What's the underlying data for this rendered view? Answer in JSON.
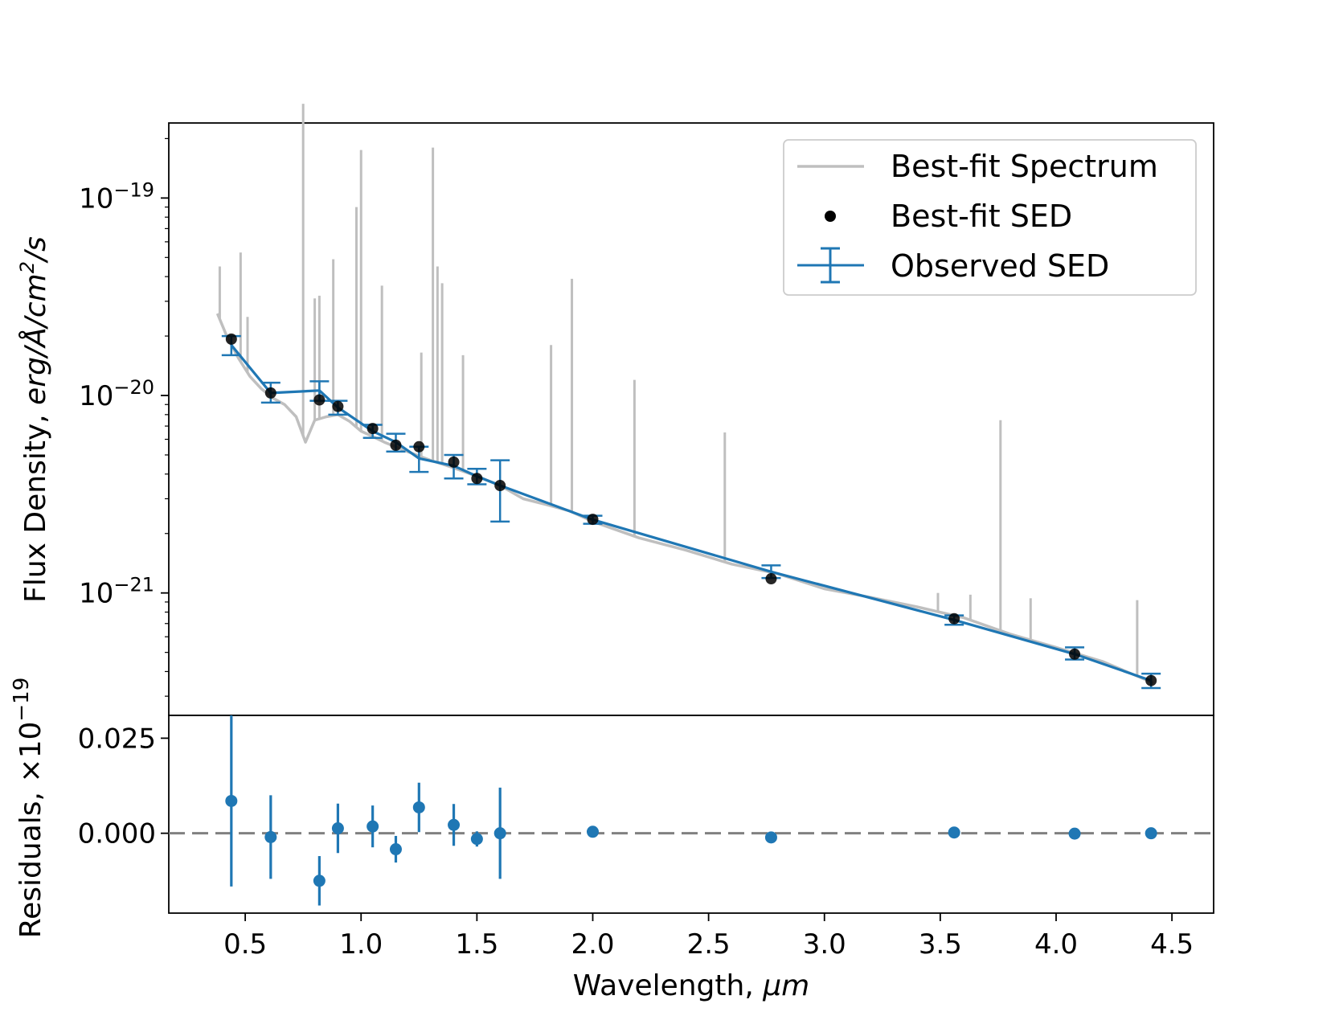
{
  "chart_data": [
    {
      "type": "line",
      "panel": "top",
      "yscale": "log",
      "ylabel": "Flux Density, erg/Å/cm²/s",
      "ylabel_plain": "Flux Density, ",
      "ylabel_italic": "erg/Å/cm",
      "ylabel_sup": "2",
      "ylabel_italic_tail": "/s",
      "xlim": [
        0.17,
        4.68
      ],
      "ylim_log10": [
        -21.62,
        -18.62
      ],
      "yticks": [
        {
          "base": "10",
          "exp": "−19",
          "log": -19
        },
        {
          "base": "10",
          "exp": "−20",
          "log": -20
        },
        {
          "base": "10",
          "exp": "−21",
          "log": -21
        }
      ],
      "legend": {
        "position": "top-right",
        "entries": [
          "Best-fit Spectrum",
          "Best-fit SED",
          "Observed SED"
        ]
      },
      "series": [
        {
          "name": "Observed SED",
          "color": "#1f77b4",
          "unit_factor": 1e-20,
          "x": [
            0.44,
            0.61,
            0.82,
            0.9,
            1.05,
            1.15,
            1.25,
            1.4,
            1.5,
            1.6,
            2.0,
            2.77,
            3.56,
            4.08,
            4.41
          ],
          "y": [
            1.8,
            1.03,
            1.06,
            0.87,
            0.66,
            0.58,
            0.48,
            0.44,
            0.39,
            0.35,
            0.235,
            0.128,
            0.073,
            0.049,
            0.036
          ],
          "yerr_low": [
            0.2,
            0.11,
            0.12,
            0.07,
            0.05,
            0.06,
            0.07,
            0.06,
            0.035,
            0.12,
            0.011,
            0.009,
            0.004,
            0.003,
            0.003
          ],
          "yerr_high": [
            0.2,
            0.13,
            0.12,
            0.07,
            0.05,
            0.06,
            0.07,
            0.06,
            0.035,
            0.12,
            0.011,
            0.01,
            0.004,
            0.004,
            0.003
          ]
        },
        {
          "name": "Best-fit SED",
          "color": "#000000",
          "unit_factor": 1e-20,
          "x": [
            0.44,
            0.61,
            0.82,
            0.9,
            1.05,
            1.15,
            1.25,
            1.4,
            1.5,
            1.6,
            2.0,
            2.77,
            3.56,
            4.08,
            4.41
          ],
          "y": [
            1.93,
            1.03,
            0.95,
            0.88,
            0.68,
            0.56,
            0.55,
            0.46,
            0.38,
            0.35,
            0.236,
            0.118,
            0.074,
            0.049,
            0.036
          ]
        },
        {
          "name": "Best-fit Spectrum",
          "color": "#bfbfbf",
          "unit_factor": 1e-20,
          "continuum": {
            "x": [
              0.38,
              0.42,
              0.47,
              0.52,
              0.57,
              0.62,
              0.67,
              0.72,
              0.76,
              0.8,
              0.85,
              0.9,
              0.95,
              1.0,
              1.05,
              1.1,
              1.2,
              1.3,
              1.4,
              1.5,
              1.6,
              1.7,
              1.8,
              1.9,
              2.0,
              2.2,
              2.4,
              2.6,
              2.8,
              3.0,
              3.2,
              3.4,
              3.6,
              3.8,
              4.0,
              4.2,
              4.42
            ],
            "y": [
              2.6,
              2.0,
              1.55,
              1.25,
              1.08,
              0.97,
              0.9,
              0.78,
              0.58,
              0.75,
              0.78,
              0.8,
              0.74,
              0.66,
              0.62,
              0.58,
              0.52,
              0.47,
              0.43,
              0.39,
              0.35,
              0.3,
              0.28,
              0.26,
              0.23,
              0.19,
              0.165,
              0.14,
              0.125,
              0.105,
              0.095,
              0.085,
              0.075,
              0.062,
              0.053,
              0.045,
              0.035
            ]
          },
          "lines": [
            {
              "x": 0.39,
              "top": 4.5
            },
            {
              "x": 0.48,
              "top": 5.3
            },
            {
              "x": 0.51,
              "top": 2.5
            },
            {
              "x": 0.75,
              "top": 30.0
            },
            {
              "x": 0.8,
              "top": 3.1
            },
            {
              "x": 0.82,
              "top": 3.2
            },
            {
              "x": 0.88,
              "top": 4.9
            },
            {
              "x": 0.98,
              "top": 9.0
            },
            {
              "x": 1.0,
              "top": 17.5
            },
            {
              "x": 1.09,
              "top": 3.6
            },
            {
              "x": 1.26,
              "top": 1.65
            },
            {
              "x": 1.31,
              "top": 18.0
            },
            {
              "x": 1.33,
              "top": 4.5
            },
            {
              "x": 1.35,
              "top": 3.7
            },
            {
              "x": 1.44,
              "top": 1.6
            },
            {
              "x": 1.82,
              "top": 1.8
            },
            {
              "x": 1.91,
              "top": 3.9
            },
            {
              "x": 2.18,
              "top": 1.2
            },
            {
              "x": 2.57,
              "top": 0.65
            },
            {
              "x": 3.49,
              "top": 0.1
            },
            {
              "x": 3.63,
              "top": 0.098
            },
            {
              "x": 3.76,
              "top": 0.75
            },
            {
              "x": 3.89,
              "top": 0.094
            },
            {
              "x": 4.35,
              "top": 0.092
            }
          ]
        }
      ]
    },
    {
      "type": "scatter",
      "panel": "bottom",
      "ylabel": "Residuals, ×10",
      "ylabel_exp": "−19",
      "xlabel": "Wavelength, ",
      "xlabel_italic": "μm",
      "xlim": [
        0.17,
        4.68
      ],
      "ylim": [
        -0.021,
        0.031
      ],
      "yticks": [
        "0.000",
        "0.025"
      ],
      "ytick_values": [
        0.0,
        0.025
      ],
      "xticks": [
        "0.5",
        "1.0",
        "1.5",
        "2.0",
        "2.5",
        "3.0",
        "3.5",
        "4.0",
        "4.5"
      ],
      "xtick_values": [
        0.5,
        1.0,
        1.5,
        2.0,
        2.5,
        3.0,
        3.5,
        4.0,
        4.5
      ],
      "reference_line": 0.0,
      "series": [
        {
          "name": "Residuals",
          "color": "#1f77b4",
          "x": [
            0.44,
            0.61,
            0.82,
            0.9,
            1.05,
            1.15,
            1.25,
            1.4,
            1.5,
            1.6,
            2.0,
            2.77,
            3.56,
            4.08,
            4.41
          ],
          "y": [
            0.0085,
            -0.001,
            -0.0125,
            0.0013,
            0.0018,
            -0.0042,
            0.0068,
            0.0022,
            -0.0015,
            0.0,
            0.0004,
            -0.0011,
            0.0002,
            -0.0001,
            0.0
          ],
          "yerr": [
            0.0225,
            0.011,
            0.0065,
            0.0065,
            0.0055,
            0.0035,
            0.0065,
            0.0055,
            0.002,
            0.012,
            0.0,
            0.0,
            0.0,
            0.0,
            0.0
          ]
        }
      ]
    }
  ]
}
